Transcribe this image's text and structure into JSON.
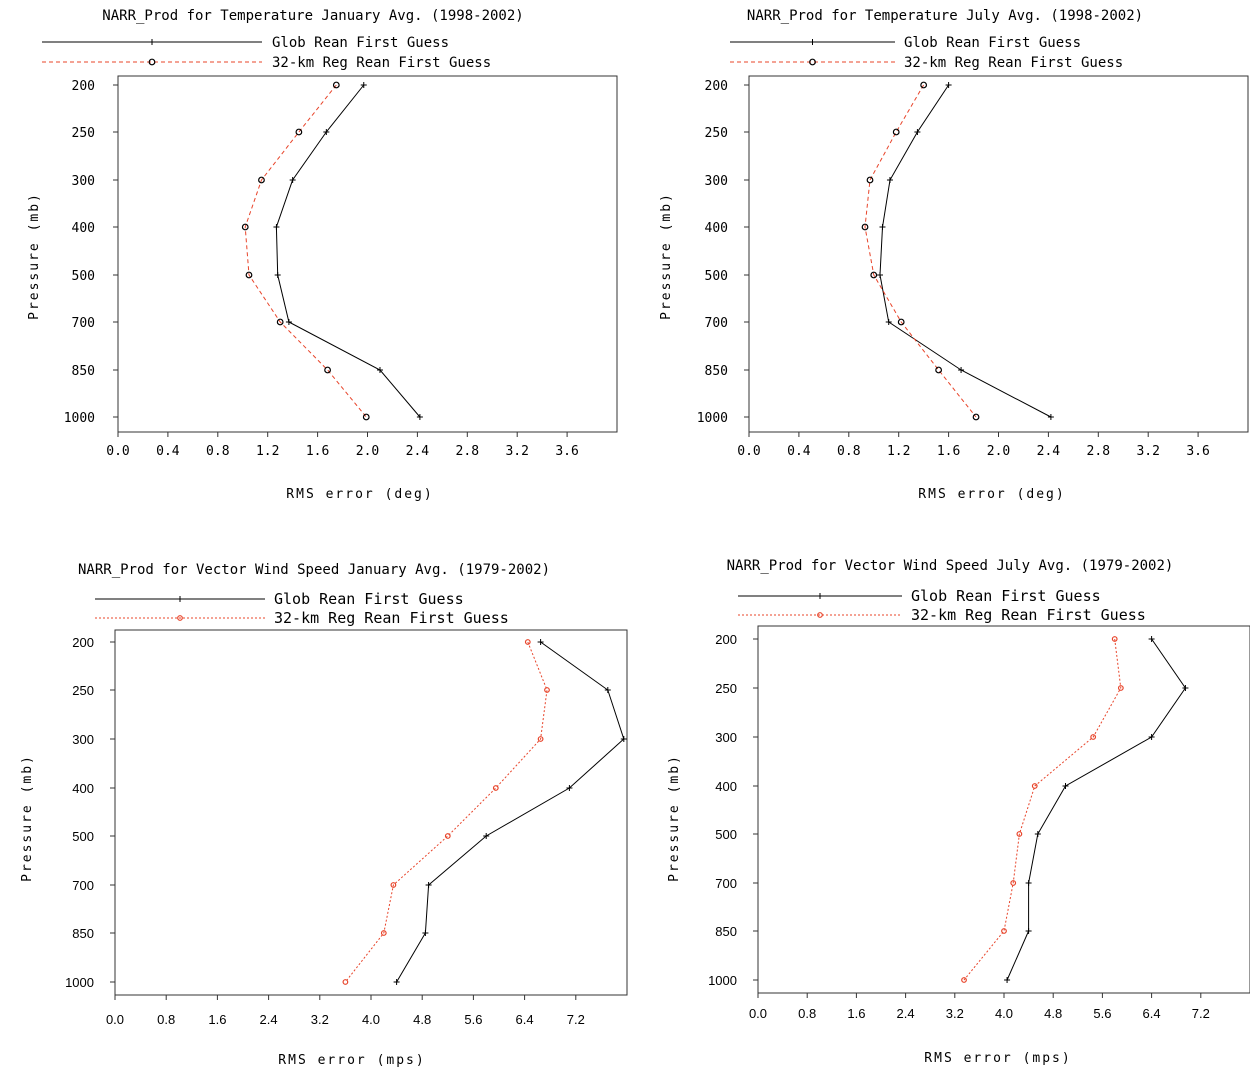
{
  "chart_data": [
    {
      "type": "line",
      "title": "NARR_Prod for Temperature January Avg. (1998-2002)",
      "xlabel": "RMS error (deg)",
      "ylabel": "Pressure (mb)",
      "y_categories": [
        "200",
        "250",
        "300",
        "400",
        "500",
        "700",
        "850",
        "1000"
      ],
      "xlim": [
        0,
        4.0
      ],
      "xticks": [
        "0.0",
        "0.4",
        "0.8",
        "1.2",
        "1.6",
        "2.0",
        "2.4",
        "2.8",
        "3.2",
        "3.6"
      ],
      "legend_position": "top",
      "series": [
        {
          "name": "Glob Rean First Guess",
          "color": "#000000",
          "style": "solid",
          "marker": "plus",
          "values": [
            1.97,
            1.67,
            1.4,
            1.27,
            1.28,
            1.37,
            2.1,
            2.42
          ]
        },
        {
          "name": "32-km Reg Rean First Guess",
          "color": "#e8442a",
          "style": "dashed",
          "marker": "circle",
          "values": [
            1.75,
            1.45,
            1.15,
            1.02,
            1.05,
            1.3,
            1.68,
            1.99
          ]
        }
      ]
    },
    {
      "type": "line",
      "title": "NARR_Prod for Temperature July Avg. (1998-2002)",
      "xlabel": "RMS error (deg)",
      "ylabel": "Pressure (mb)",
      "y_categories": [
        "200",
        "250",
        "300",
        "400",
        "500",
        "700",
        "850",
        "1000"
      ],
      "xlim": [
        0,
        4.0
      ],
      "xticks": [
        "0.0",
        "0.4",
        "0.8",
        "1.2",
        "1.6",
        "2.0",
        "2.4",
        "2.8",
        "3.2",
        "3.6"
      ],
      "legend_position": "top",
      "series": [
        {
          "name": "Glob Rean First Guess",
          "color": "#000000",
          "style": "solid",
          "marker": "plus",
          "values": [
            1.6,
            1.35,
            1.13,
            1.07,
            1.05,
            1.12,
            1.7,
            2.42
          ]
        },
        {
          "name": "32-km Reg Rean First Guess",
          "color": "#e8442a",
          "style": "dashed",
          "marker": "circle",
          "values": [
            1.4,
            1.18,
            0.97,
            0.93,
            1.0,
            1.22,
            1.52,
            1.82
          ]
        }
      ]
    },
    {
      "type": "line",
      "title": "NARR_Prod for Vector Wind Speed January Avg. (1979-2002)",
      "xlabel": "RMS error (mps)",
      "ylabel": "Pressure (mb)",
      "y_categories": [
        "200",
        "250",
        "300",
        "400",
        "500",
        "700",
        "850",
        "1000"
      ],
      "xlim": [
        0,
        8.0
      ],
      "xticks": [
        "0.0",
        "0.8",
        "1.6",
        "2.4",
        "3.2",
        "4.0",
        "4.8",
        "5.6",
        "6.4",
        "7.2"
      ],
      "legend_position": "top",
      "series": [
        {
          "name": "Glob Rean First Guess",
          "color": "#000000",
          "style": "solid",
          "marker": "plus",
          "values": [
            6.65,
            7.7,
            7.95,
            7.1,
            5.8,
            4.9,
            4.85,
            4.4
          ]
        },
        {
          "name": "32-km Reg Rean First Guess",
          "color": "#e8442a",
          "style": "dotted",
          "marker": "circle",
          "values": [
            6.45,
            6.75,
            6.65,
            5.95,
            5.2,
            4.35,
            4.2,
            3.6
          ]
        }
      ]
    },
    {
      "type": "line",
      "title": "NARR_Prod for Vector Wind Speed July Avg. (1979-2002)",
      "xlabel": "RMS error (mps)",
      "ylabel": "Pressure (mb)",
      "y_categories": [
        "200",
        "250",
        "300",
        "400",
        "500",
        "700",
        "850",
        "1000"
      ],
      "xlim": [
        0,
        8.0
      ],
      "xticks": [
        "0.0",
        "0.8",
        "1.6",
        "2.4",
        "3.2",
        "4.0",
        "4.8",
        "5.6",
        "6.4",
        "7.2"
      ],
      "legend_position": "top",
      "series": [
        {
          "name": "Glob Rean First Guess",
          "color": "#000000",
          "style": "solid",
          "marker": "plus",
          "values": [
            6.4,
            6.95,
            6.4,
            5.0,
            4.55,
            4.4,
            4.4,
            4.05
          ]
        },
        {
          "name": "32-km Reg Rean First Guess",
          "color": "#e8442a",
          "style": "dotted",
          "marker": "circle",
          "values": [
            5.8,
            5.9,
            5.45,
            4.5,
            4.25,
            4.15,
            4.0,
            3.35
          ]
        }
      ]
    }
  ]
}
